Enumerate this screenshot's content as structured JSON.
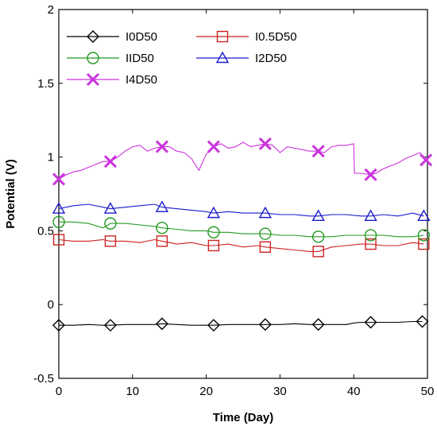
{
  "chart_data": {
    "type": "line",
    "xlabel": "Time (Day)",
    "ylabel": "Potential (V)",
    "xlim": [
      0,
      50
    ],
    "ylim": [
      -0.5,
      2
    ],
    "xticks": [
      0,
      10,
      20,
      30,
      40,
      50
    ],
    "yticks": [
      -0.5,
      0,
      0.5,
      1,
      1.5,
      2
    ],
    "x_tick_labels": [
      "0",
      "10",
      "20",
      "30",
      "40",
      "50"
    ],
    "y_tick_labels": [
      "-0.5",
      "0",
      "0.5",
      "1",
      "1.5",
      "2"
    ],
    "grid": false,
    "legend_position": "top-left",
    "series": [
      {
        "name": "I0D50",
        "color": "#000000",
        "marker": "diamond",
        "x": [
          0,
          2,
          4,
          6,
          7,
          9,
          11,
          13,
          14,
          16,
          18,
          20,
          21,
          23,
          25,
          27,
          28,
          30,
          32,
          34,
          35,
          37,
          39,
          40,
          41,
          42.3,
          44,
          46,
          48,
          49.3
        ],
        "y": [
          -0.14,
          -0.14,
          -0.135,
          -0.14,
          -0.14,
          -0.135,
          -0.135,
          -0.135,
          -0.13,
          -0.135,
          -0.14,
          -0.14,
          -0.14,
          -0.135,
          -0.135,
          -0.135,
          -0.135,
          -0.135,
          -0.13,
          -0.135,
          -0.135,
          -0.135,
          -0.135,
          -0.125,
          -0.12,
          -0.12,
          -0.12,
          -0.12,
          -0.115,
          -0.115
        ]
      },
      {
        "name": "I0.5D50",
        "color": "#cc2222",
        "marker": "square",
        "x": [
          0,
          2,
          4,
          6,
          7,
          9,
          11,
          13,
          14,
          16,
          18,
          20,
          21,
          23,
          25,
          27,
          28,
          30,
          32,
          34,
          35.2,
          37,
          39,
          41,
          42.3,
          44,
          46,
          48,
          49.5
        ],
        "y": [
          0.44,
          0.43,
          0.43,
          0.44,
          0.43,
          0.43,
          0.42,
          0.44,
          0.43,
          0.41,
          0.42,
          0.4,
          0.4,
          0.41,
          0.39,
          0.4,
          0.39,
          0.38,
          0.37,
          0.36,
          0.36,
          0.39,
          0.4,
          0.41,
          0.41,
          0.4,
          0.4,
          0.42,
          0.41
        ]
      },
      {
        "name": "IID50",
        "color": "#229922",
        "marker": "circle",
        "x": [
          0,
          2,
          4,
          6,
          7,
          9,
          11,
          13,
          14,
          16,
          18,
          20,
          21,
          23,
          25,
          27,
          28,
          30,
          32,
          34,
          35.2,
          37,
          39,
          41,
          42.3,
          44,
          46,
          48,
          49.5
        ],
        "y": [
          0.56,
          0.56,
          0.55,
          0.52,
          0.55,
          0.55,
          0.54,
          0.53,
          0.52,
          0.51,
          0.5,
          0.5,
          0.49,
          0.49,
          0.48,
          0.48,
          0.48,
          0.47,
          0.47,
          0.46,
          0.46,
          0.46,
          0.47,
          0.47,
          0.47,
          0.47,
          0.46,
          0.46,
          0.47
        ]
      },
      {
        "name": "I2D50",
        "color": "#1a1acc",
        "marker": "triangle",
        "x": [
          0,
          2,
          4,
          6,
          7,
          9,
          11,
          13,
          14,
          16,
          18,
          20,
          21,
          23,
          25,
          27,
          28,
          30,
          32,
          34,
          35.2,
          37,
          39,
          41,
          42.3,
          44,
          46,
          48,
          49.5
        ],
        "y": [
          0.65,
          0.67,
          0.68,
          0.66,
          0.65,
          0.66,
          0.67,
          0.68,
          0.66,
          0.65,
          0.64,
          0.63,
          0.62,
          0.63,
          0.62,
          0.62,
          0.62,
          0.61,
          0.61,
          0.6,
          0.6,
          0.61,
          0.61,
          0.6,
          0.6,
          0.61,
          0.6,
          0.62,
          0.6
        ]
      },
      {
        "name": "I4D50",
        "color": "#cc33dd",
        "marker": "x",
        "x": [
          0,
          1,
          2,
          3,
          4,
          5,
          6,
          7,
          8,
          9,
          10,
          11,
          12,
          13,
          14,
          15,
          16,
          17,
          18,
          19,
          20,
          21,
          22,
          23,
          24,
          25,
          26,
          27,
          28,
          29,
          30,
          31,
          32,
          33,
          34,
          35.2,
          36,
          37,
          38,
          39,
          40,
          40.1,
          41,
          42.3,
          43,
          44,
          45,
          46,
          47,
          48,
          49,
          49.8
        ],
        "y": [
          0.85,
          0.88,
          0.9,
          0.91,
          0.93,
          0.95,
          0.97,
          0.97,
          1.0,
          1.04,
          1.07,
          1.08,
          1.04,
          1.06,
          1.07,
          1.07,
          1.04,
          1.03,
          0.99,
          0.91,
          1.02,
          1.07,
          1.09,
          1.06,
          1.07,
          1.1,
          1.07,
          1.08,
          1.09,
          1.08,
          1.03,
          1.07,
          1.06,
          1.05,
          1.04,
          1.04,
          1.03,
          1.07,
          1.08,
          1.08,
          1.09,
          0.89,
          0.89,
          0.88,
          0.89,
          0.92,
          0.94,
          0.96,
          0.99,
          1.01,
          1.03,
          0.98
        ]
      }
    ],
    "markers": {
      "I0D50": {
        "x": [
          0,
          7,
          14,
          21,
          28,
          35.2,
          42.3,
          49.3
        ],
        "y": [
          -0.14,
          -0.14,
          -0.13,
          -0.14,
          -0.135,
          -0.135,
          -0.12,
          -0.115
        ]
      },
      "I0.5D50": {
        "x": [
          0,
          7,
          14,
          21,
          28,
          35.2,
          42.3,
          49.5
        ],
        "y": [
          0.44,
          0.43,
          0.43,
          0.4,
          0.39,
          0.36,
          0.41,
          0.41
        ]
      },
      "IID50": {
        "x": [
          0,
          7,
          14,
          21,
          28,
          35.2,
          42.3,
          49.5
        ],
        "y": [
          0.56,
          0.55,
          0.52,
          0.49,
          0.48,
          0.46,
          0.47,
          0.47
        ]
      },
      "I2D50": {
        "x": [
          0,
          7,
          14,
          21,
          28,
          35.2,
          42.3,
          49.5
        ],
        "y": [
          0.65,
          0.65,
          0.66,
          0.62,
          0.62,
          0.6,
          0.6,
          0.6
        ]
      },
      "I4D50": {
        "x": [
          0,
          7,
          14,
          21,
          28,
          35.2,
          42.3,
          49.8
        ],
        "y": [
          0.85,
          0.97,
          1.07,
          1.07,
          1.09,
          1.04,
          0.88,
          0.98
        ]
      }
    }
  }
}
